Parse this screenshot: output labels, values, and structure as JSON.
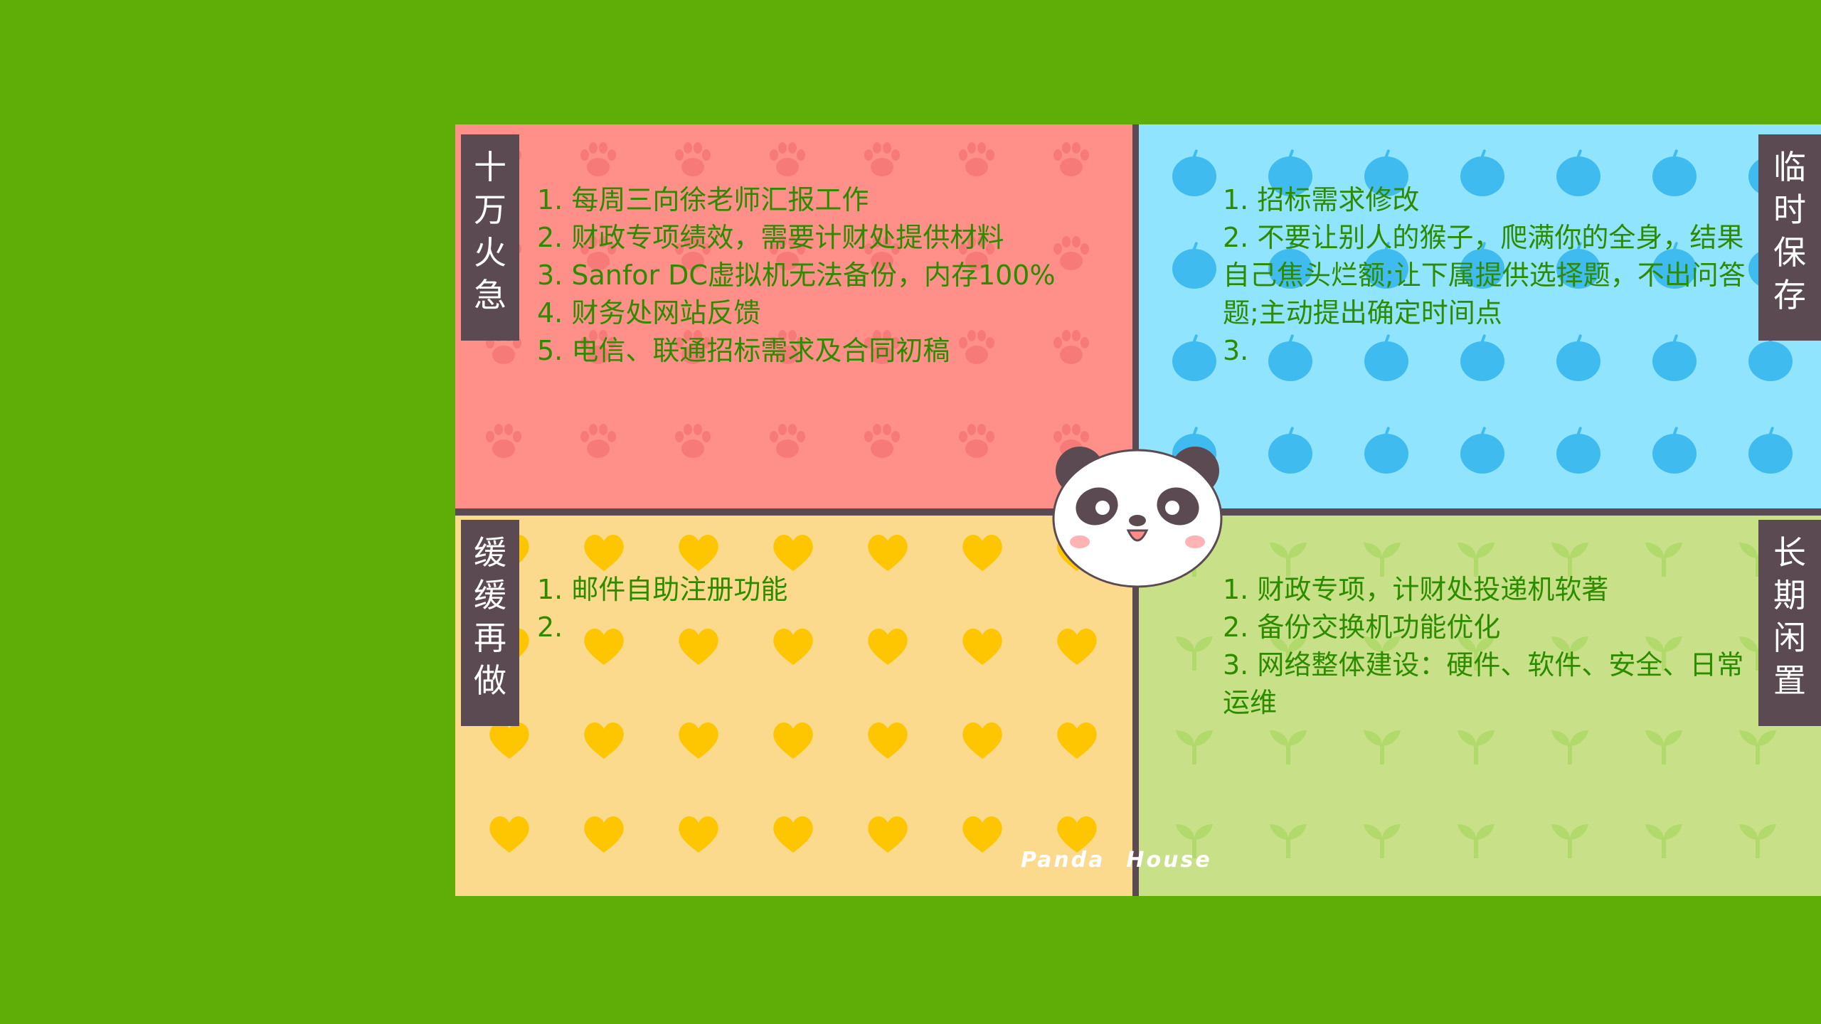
{
  "quadrants": {
    "urgent": {
      "tag": [
        "十",
        "万",
        "火",
        "急"
      ],
      "items": [
        "1. 每周三向徐老师汇报工作",
        "2. 财政专项绩效，需要计财处提供材料",
        "3. Sanfor DC虚拟机无法备份，内存100%",
        "4. 财务处网站反馈",
        "5. 电信、联通招标需求及合同初稿"
      ]
    },
    "temporary": {
      "tag": [
        "临",
        "时",
        "保",
        "存"
      ],
      "items": [
        "1. 招标需求修改",
        "2. 不要让别人的猴子，爬满你的全身，结果自己焦头烂额;让下属提供选择题，不出问答题;主动提出确定时间点",
        "3."
      ]
    },
    "slow": {
      "tag": [
        "缓",
        "缓",
        "再",
        "做"
      ],
      "items": [
        "1. 邮件自助注册功能",
        "2."
      ]
    },
    "long_term": {
      "tag": [
        "长",
        "期",
        "闲",
        "置"
      ],
      "items": [
        "1. 财政专项，计财处投递机软著",
        "2. 备份交换机功能优化",
        "3. 网络整体建设：硬件、软件、安全、日常运维"
      ]
    }
  },
  "branding": {
    "word1": "Panda",
    "word2": "House"
  },
  "colors": {
    "desktop_bg": "#5fae08",
    "urgent": "#ff8f89",
    "temporary": "#90e4fd",
    "slow": "#fbd98d",
    "long_term": "#c8e087",
    "text": "#2d8b00",
    "tag_bg": "#5c4a52"
  },
  "icons": {
    "urgent_pattern": "paw-print-icon",
    "temporary_pattern": "apple-icon",
    "slow_pattern": "heart-icon",
    "long_term_pattern": "sprout-icon",
    "center": "panda-face-icon"
  }
}
